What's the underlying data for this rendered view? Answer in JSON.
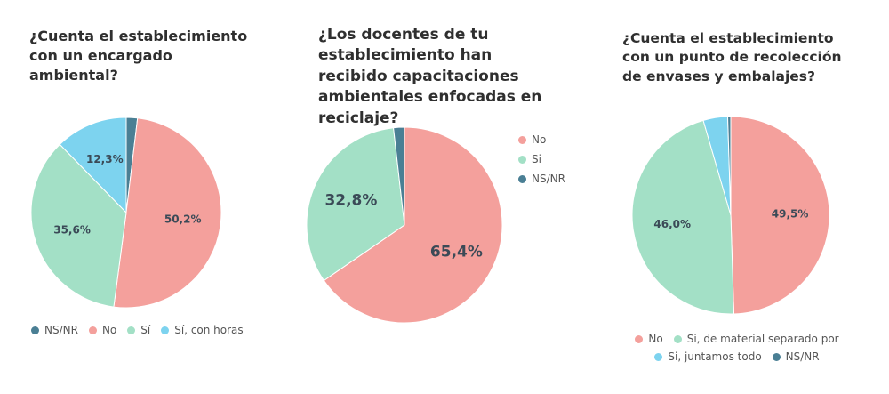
{
  "chart_data": [
    {
      "type": "pie",
      "title": "¿Cuenta el establecimiento con un encargado ambiental?",
      "categories": [
        "NS/NR",
        "No",
        "Sí",
        "Sí, con horas"
      ],
      "values": [
        1.9,
        50.2,
        35.6,
        12.3
      ],
      "value_labels": [
        null,
        "50,2%",
        "35,6%",
        "12,3%"
      ],
      "colors": [
        "#4a7f94",
        "#f4a09c",
        "#a3e0c6",
        "#7dd3ef"
      ]
    },
    {
      "type": "pie",
      "title": "¿Los docentes de tu establecimiento han recibido capacitaciones ambientales enfocadas en reciclaje?",
      "categories": [
        "No",
        "Si",
        "NS/NR"
      ],
      "values": [
        65.4,
        32.8,
        1.8
      ],
      "value_labels": [
        "65,4%",
        "32,8%",
        null
      ],
      "colors": [
        "#f4a09c",
        "#a3e0c6",
        "#4a7f94"
      ]
    },
    {
      "type": "pie",
      "title": "¿Cuenta el establecimiento con un punto de recolección de envases y embalajes?",
      "categories": [
        "No",
        "Si, de material separado por",
        "Si, juntamos todo",
        "NS/NR"
      ],
      "values": [
        49.5,
        46.0,
        4.0,
        0.5
      ],
      "value_labels": [
        "49,5%",
        "46,0%",
        null,
        null
      ],
      "colors": [
        "#f4a09c",
        "#a3e0c6",
        "#7dd3ef",
        "#4a7f94"
      ]
    }
  ]
}
